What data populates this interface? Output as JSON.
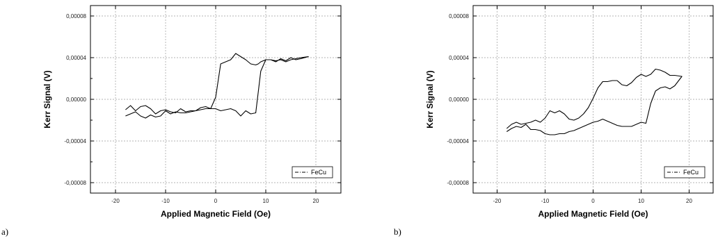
{
  "chart_data": [
    {
      "type": "line",
      "panel_label": "a)",
      "xlabel": "Applied Magnetic Field (Oe)",
      "ylabel": "Kerr Signal (V)",
      "xlim": [
        -25,
        25
      ],
      "ylim": [
        -9e-05,
        9e-05
      ],
      "x_ticks": [
        -20,
        -10,
        0,
        10,
        20
      ],
      "y_ticks": [
        -8e-05,
        -4e-05,
        0,
        4e-05,
        8e-05
      ],
      "x_tick_labels": [
        "-20",
        "-10",
        "0",
        "10",
        "20"
      ],
      "y_tick_labels": [
        "-0,00008",
        "-0,00004",
        "0,00000",
        "0,00004",
        "0,00008"
      ],
      "grid": true,
      "legend_position": "bottom-right",
      "series": [
        {
          "name": "FeCu",
          "color": "#000000",
          "x": [
            -18,
            -17,
            -16,
            -15,
            -14,
            -13,
            -12,
            -11,
            -10,
            -9,
            -8,
            -7,
            -6,
            -5,
            -4,
            -3,
            -2,
            -1,
            0,
            1,
            2,
            3,
            4,
            5,
            6,
            7,
            8,
            9,
            10,
            11,
            12,
            13,
            14,
            15,
            16,
            17,
            18.5,
            17,
            16,
            15,
            14,
            13,
            12,
            11,
            10,
            9,
            8.5,
            8,
            7,
            6,
            5,
            4,
            3,
            2,
            1,
            0,
            -1,
            -2,
            -3,
            -4,
            -5,
            -6,
            -7,
            -8,
            -9,
            -10,
            -11,
            -12,
            -13,
            -14,
            -15,
            -16,
            -17,
            -18
          ],
          "y": [
            -1.6e-05,
            -1.4e-05,
            -1.2e-05,
            -1.6e-05,
            -1.8e-05,
            -1.5e-05,
            -1.7e-05,
            -1.6e-05,
            -1.1e-05,
            -1.4e-05,
            -1.2e-05,
            -1.3e-05,
            -1.3e-05,
            -1.2e-05,
            -1.1e-05,
            -1e-05,
            -9e-06,
            -9e-06,
            -9e-06,
            -1.1e-05,
            -1e-05,
            -9e-06,
            -1.1e-05,
            -1.6e-05,
            -1.1e-05,
            -1.4e-05,
            -1.3e-05,
            2.7e-05,
            3.8e-05,
            3.8e-05,
            3.7e-05,
            3.8e-05,
            3.6e-05,
            3.8e-05,
            3.9e-05,
            4e-05,
            4.1e-05,
            3.9e-05,
            3.8e-05,
            4e-05,
            3.7e-05,
            3.9e-05,
            3.6e-05,
            3.8e-05,
            3.8e-05,
            3.6e-05,
            3.4e-05,
            3.3e-05,
            3.4e-05,
            3.8e-05,
            4.1e-05,
            4.4e-05,
            3.8e-05,
            3.6e-05,
            3.4e-05,
            2e-06,
            -9e-06,
            -7e-06,
            -8e-06,
            -1.1e-05,
            -1.1e-05,
            -1.2e-05,
            -9e-06,
            -1.3e-05,
            -1.2e-05,
            -1e-05,
            -1.1e-05,
            -1.4e-05,
            -9e-06,
            -6e-06,
            -7e-06,
            -1.1e-05,
            -6e-06,
            -1e-05
          ]
        }
      ]
    },
    {
      "type": "line",
      "panel_label": "b)",
      "xlabel": "Applied Magnetic Field (Oe)",
      "ylabel": "Kerr Signal (V)",
      "xlim": [
        -25,
        25
      ],
      "ylim": [
        -9e-05,
        9e-05
      ],
      "x_ticks": [
        -20,
        -10,
        0,
        10,
        20
      ],
      "y_ticks": [
        -8e-05,
        -4e-05,
        0,
        4e-05,
        8e-05
      ],
      "x_tick_labels": [
        "-20",
        "-10",
        "0",
        "10",
        "20"
      ],
      "y_tick_labels": [
        "-0,00008",
        "-0,00004",
        "0,00000",
        "0,00004",
        "0,00008"
      ],
      "grid": true,
      "legend_position": "bottom-right",
      "series": [
        {
          "name": "FeCu",
          "color": "#000000",
          "x": [
            -18,
            -17,
            -16,
            -15,
            -14,
            -13,
            -12,
            -11,
            -10,
            -9,
            -8,
            -7,
            -6,
            -5,
            -4,
            -3,
            -2,
            -1,
            0,
            1,
            2,
            3,
            4,
            5,
            6,
            7,
            8,
            9,
            10,
            11,
            12,
            13,
            14,
            15,
            16,
            17,
            18.5,
            17,
            16,
            15,
            14,
            13,
            12,
            11,
            10,
            9,
            8,
            7,
            6,
            5,
            4,
            3,
            2,
            1,
            0,
            -1,
            -2,
            -3,
            -4,
            -5,
            -6,
            -7,
            -8,
            -9,
            -10,
            -11,
            -12,
            -13,
            -14,
            -15,
            -16,
            -17,
            -18
          ],
          "y": [
            -3.1e-05,
            -2.8e-05,
            -2.6e-05,
            -2.7e-05,
            -2.4e-05,
            -2.9e-05,
            -2.9e-05,
            -3e-05,
            -3.3e-05,
            -3.4e-05,
            -3.4e-05,
            -3.3e-05,
            -3.3e-05,
            -3.1e-05,
            -3e-05,
            -2.8e-05,
            -2.6e-05,
            -2.4e-05,
            -2.2e-05,
            -2.1e-05,
            -1.9e-05,
            -2.1e-05,
            -2.3e-05,
            -2.5e-05,
            -2.6e-05,
            -2.6e-05,
            -2.6e-05,
            -2.4e-05,
            -2.2e-05,
            -2.3e-05,
            -4e-06,
            8e-06,
            1.1e-05,
            1.2e-05,
            1e-05,
            1.3e-05,
            2.2e-05,
            2.3e-05,
            2.3e-05,
            2.6e-05,
            2.8e-05,
            2.9e-05,
            2.4e-05,
            2.2e-05,
            2.4e-05,
            2.1e-05,
            1.6e-05,
            1.3e-05,
            1.4e-05,
            1.8e-05,
            1.8e-05,
            1.7e-05,
            1.7e-05,
            1.1e-05,
            1e-06,
            -8e-06,
            -1.4e-05,
            -1.8e-05,
            -2e-05,
            -1.9e-05,
            -1.4e-05,
            -1.1e-05,
            -1.3e-05,
            -1.1e-05,
            -1.8e-05,
            -2.2e-05,
            -2e-05,
            -2.2e-05,
            -2.3e-05,
            -2.4e-05,
            -2.2e-05,
            -2.4e-05,
            -2.8e-05
          ]
        }
      ]
    }
  ]
}
